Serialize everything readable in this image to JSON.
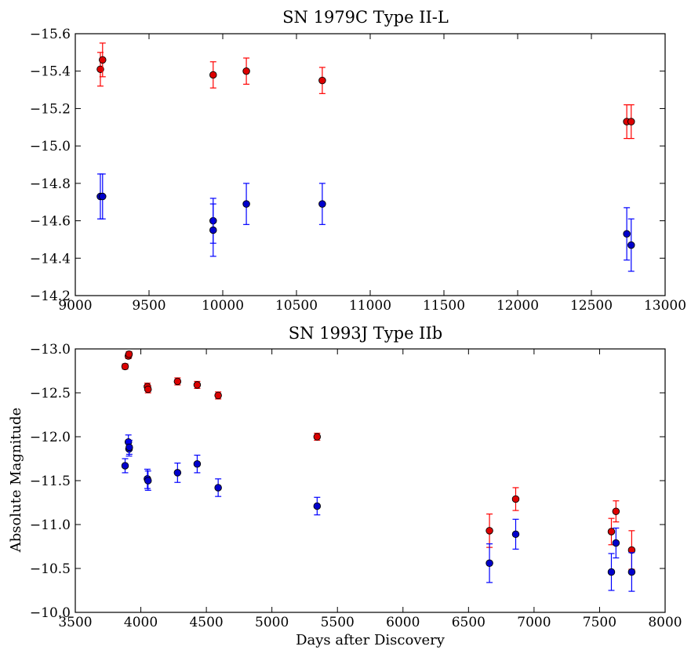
{
  "chart_data": [
    {
      "type": "scatter",
      "title": "SN 1979C Type II-L",
      "xlabel": "",
      "ylabel": "",
      "xlim": [
        9000,
        13000
      ],
      "ylim": [
        -14.2,
        -15.6
      ],
      "y_inverted": true,
      "xticks": [
        9000,
        9500,
        10000,
        10500,
        11000,
        11500,
        12000,
        12500,
        13000
      ],
      "xtick_labels": [
        "9000",
        "9500",
        "10000",
        "10500",
        "11000",
        "11500",
        "12000",
        "12500",
        "13000"
      ],
      "yticks": [
        -15.6,
        -15.4,
        -15.2,
        -15.0,
        -14.8,
        -14.6,
        -14.4,
        -14.2
      ],
      "ytick_labels": [
        "−15.6",
        "−15.4",
        "−15.2",
        "−15.0",
        "−14.8",
        "−14.6",
        "−14.4",
        "−14.2"
      ],
      "grid": false,
      "series": [
        {
          "color": "#ff0000",
          "marker_color": "#dd0000",
          "points": [
            {
              "x": 9170,
              "y": -15.41,
              "err": 0.09
            },
            {
              "x": 9185,
              "y": -15.46,
              "err": 0.09
            },
            {
              "x": 9935,
              "y": -15.38,
              "err": 0.07
            },
            {
              "x": 10160,
              "y": -15.4,
              "err": 0.07
            },
            {
              "x": 10675,
              "y": -15.35,
              "err": 0.07
            },
            {
              "x": 12740,
              "y": -15.13,
              "err": 0.09
            },
            {
              "x": 12770,
              "y": -15.13,
              "err": 0.09
            }
          ]
        },
        {
          "color": "#0000ff",
          "marker_color": "#0000cc",
          "points": [
            {
              "x": 9170,
              "y": -14.73,
              "err": 0.12
            },
            {
              "x": 9185,
              "y": -14.73,
              "err": 0.12
            },
            {
              "x": 9935,
              "y": -14.6,
              "err": 0.12
            },
            {
              "x": 9935,
              "y": -14.55,
              "err": 0.14
            },
            {
              "x": 10160,
              "y": -14.69,
              "err": 0.11
            },
            {
              "x": 10675,
              "y": -14.69,
              "err": 0.11
            },
            {
              "x": 12740,
              "y": -14.53,
              "err": 0.14
            },
            {
              "x": 12770,
              "y": -14.47,
              "err": 0.14
            }
          ]
        }
      ]
    },
    {
      "type": "scatter",
      "title": "SN 1993J Type IIb",
      "xlabel": "Days after Discovery",
      "ylabel": "Absolute Magnitude",
      "xlim": [
        3500,
        8000
      ],
      "ylim": [
        -10.0,
        -13.0
      ],
      "y_inverted": true,
      "xticks": [
        3500,
        4000,
        4500,
        5000,
        5500,
        6000,
        6500,
        7000,
        7500,
        8000
      ],
      "xtick_labels": [
        "3500",
        "4000",
        "4500",
        "5000",
        "5500",
        "6000",
        "6500",
        "7000",
        "7500",
        "8000"
      ],
      "yticks": [
        -13.0,
        -12.5,
        -12.0,
        -11.5,
        -11.0,
        -10.5,
        -10.0
      ],
      "ytick_labels": [
        "−13.0",
        "−12.5",
        "−12.0",
        "−11.5",
        "−11.0",
        "−10.5",
        "−10.0"
      ],
      "grid": false,
      "series": [
        {
          "color": "#ff0000",
          "marker_color": "#dd0000",
          "points": [
            {
              "x": 3880,
              "y": -12.8,
              "err": 0.03
            },
            {
              "x": 3905,
              "y": -12.92,
              "err": 0.03
            },
            {
              "x": 3910,
              "y": -12.94,
              "err": 0.03
            },
            {
              "x": 4050,
              "y": -12.57,
              "err": 0.04
            },
            {
              "x": 4055,
              "y": -12.54,
              "err": 0.04
            },
            {
              "x": 4280,
              "y": -12.63,
              "err": 0.04
            },
            {
              "x": 4430,
              "y": -12.59,
              "err": 0.04
            },
            {
              "x": 4590,
              "y": -12.47,
              "err": 0.04
            },
            {
              "x": 5345,
              "y": -12.0,
              "err": 0.04
            },
            {
              "x": 6660,
              "y": -10.93,
              "err": 0.19
            },
            {
              "x": 6860,
              "y": -11.29,
              "err": 0.13
            },
            {
              "x": 7590,
              "y": -10.92,
              "err": 0.15
            },
            {
              "x": 7625,
              "y": -11.15,
              "err": 0.12
            },
            {
              "x": 7745,
              "y": -10.71,
              "err": 0.22
            }
          ]
        },
        {
          "color": "#0000ff",
          "marker_color": "#0000cc",
          "points": [
            {
              "x": 3880,
              "y": -11.67,
              "err": 0.08
            },
            {
              "x": 3905,
              "y": -11.94,
              "err": 0.08
            },
            {
              "x": 3910,
              "y": -11.86,
              "err": 0.08
            },
            {
              "x": 3912,
              "y": -11.88,
              "err": 0.08
            },
            {
              "x": 4050,
              "y": -11.52,
              "err": 0.11
            },
            {
              "x": 4055,
              "y": -11.5,
              "err": 0.11
            },
            {
              "x": 4280,
              "y": -11.59,
              "err": 0.11
            },
            {
              "x": 4430,
              "y": -11.69,
              "err": 0.1
            },
            {
              "x": 4590,
              "y": -11.42,
              "err": 0.1
            },
            {
              "x": 5345,
              "y": -11.21,
              "err": 0.1
            },
            {
              "x": 6660,
              "y": -10.56,
              "err": 0.22
            },
            {
              "x": 6860,
              "y": -10.89,
              "err": 0.17
            },
            {
              "x": 7590,
              "y": -10.46,
              "err": 0.21
            },
            {
              "x": 7625,
              "y": -10.79,
              "err": 0.17
            },
            {
              "x": 7745,
              "y": -10.46,
              "err": 0.22
            }
          ]
        }
      ]
    }
  ]
}
